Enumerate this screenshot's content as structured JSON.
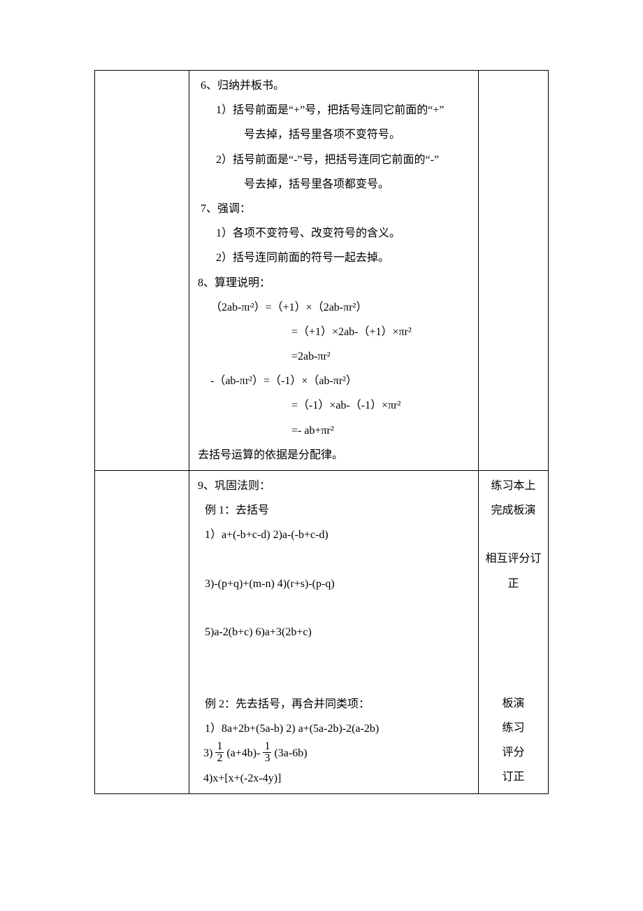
{
  "row1": {
    "c2": {
      "l1": "6、归纳并板书。",
      "l2": "1）括号前面是“+”号，把括号连同它前面的“+”",
      "l3": "号去掉，括号里各项不变符号。",
      "l4": "2）括号前面是“-”号，把括号连同它前面的“-”",
      "l5": "号去掉，括号里各项都变号。",
      "l6": "7、强调：",
      "l7": "1）各项不变符号、改变符号的含义。",
      "l8": "2）括号连同前面的符号一起去掉。",
      "l9": "8、算理说明：",
      "l10": "（2ab-πr²）=（+1）×（2ab-πr²）",
      "l11": "=（+1）×2ab-（+1）×πr²",
      "l12": "=2ab-πr²",
      "l13": "-（ab-πr²）=（-1）×（ab-πr²）",
      "l14": "=（-1）×ab-（-1）×πr²",
      "l15": "=- ab+πr²",
      "l16": "去括号运算的依据是分配律。"
    }
  },
  "row2": {
    "c2": {
      "l1": "9、巩固法则：",
      "l2": "例 1：去括号",
      "l3": "1）a+(-b+c-d)        2)a-(-b+c-d)",
      "l4": "3)-(p+q)+(m-n)       4)(r+s)-(p-q)",
      "l5": "5)a-2(b+c)           6)a+3(2b+c)",
      "l6": "例 2：先去括号，再合并同类项：",
      "l7": "1）8a+2b+(5a-b)    2) a+(5a-2b)-2(a-2b)",
      "l8a": "3)",
      "l8b": "(a+4b)- ",
      "l8c": "(3a-6b)",
      "l9": "4)x+[x+(-2x-4y)]"
    },
    "c3": {
      "l1": "练习本上",
      "l2": "完成板演",
      "l3": "相互评分订",
      "l4": "正",
      "l5": "板演",
      "l6": "练习",
      "l7": "评分",
      "l8": "订正"
    }
  },
  "fractions": {
    "half_num": "1",
    "half_den": "2",
    "third_num": "1",
    "third_den": "3"
  }
}
